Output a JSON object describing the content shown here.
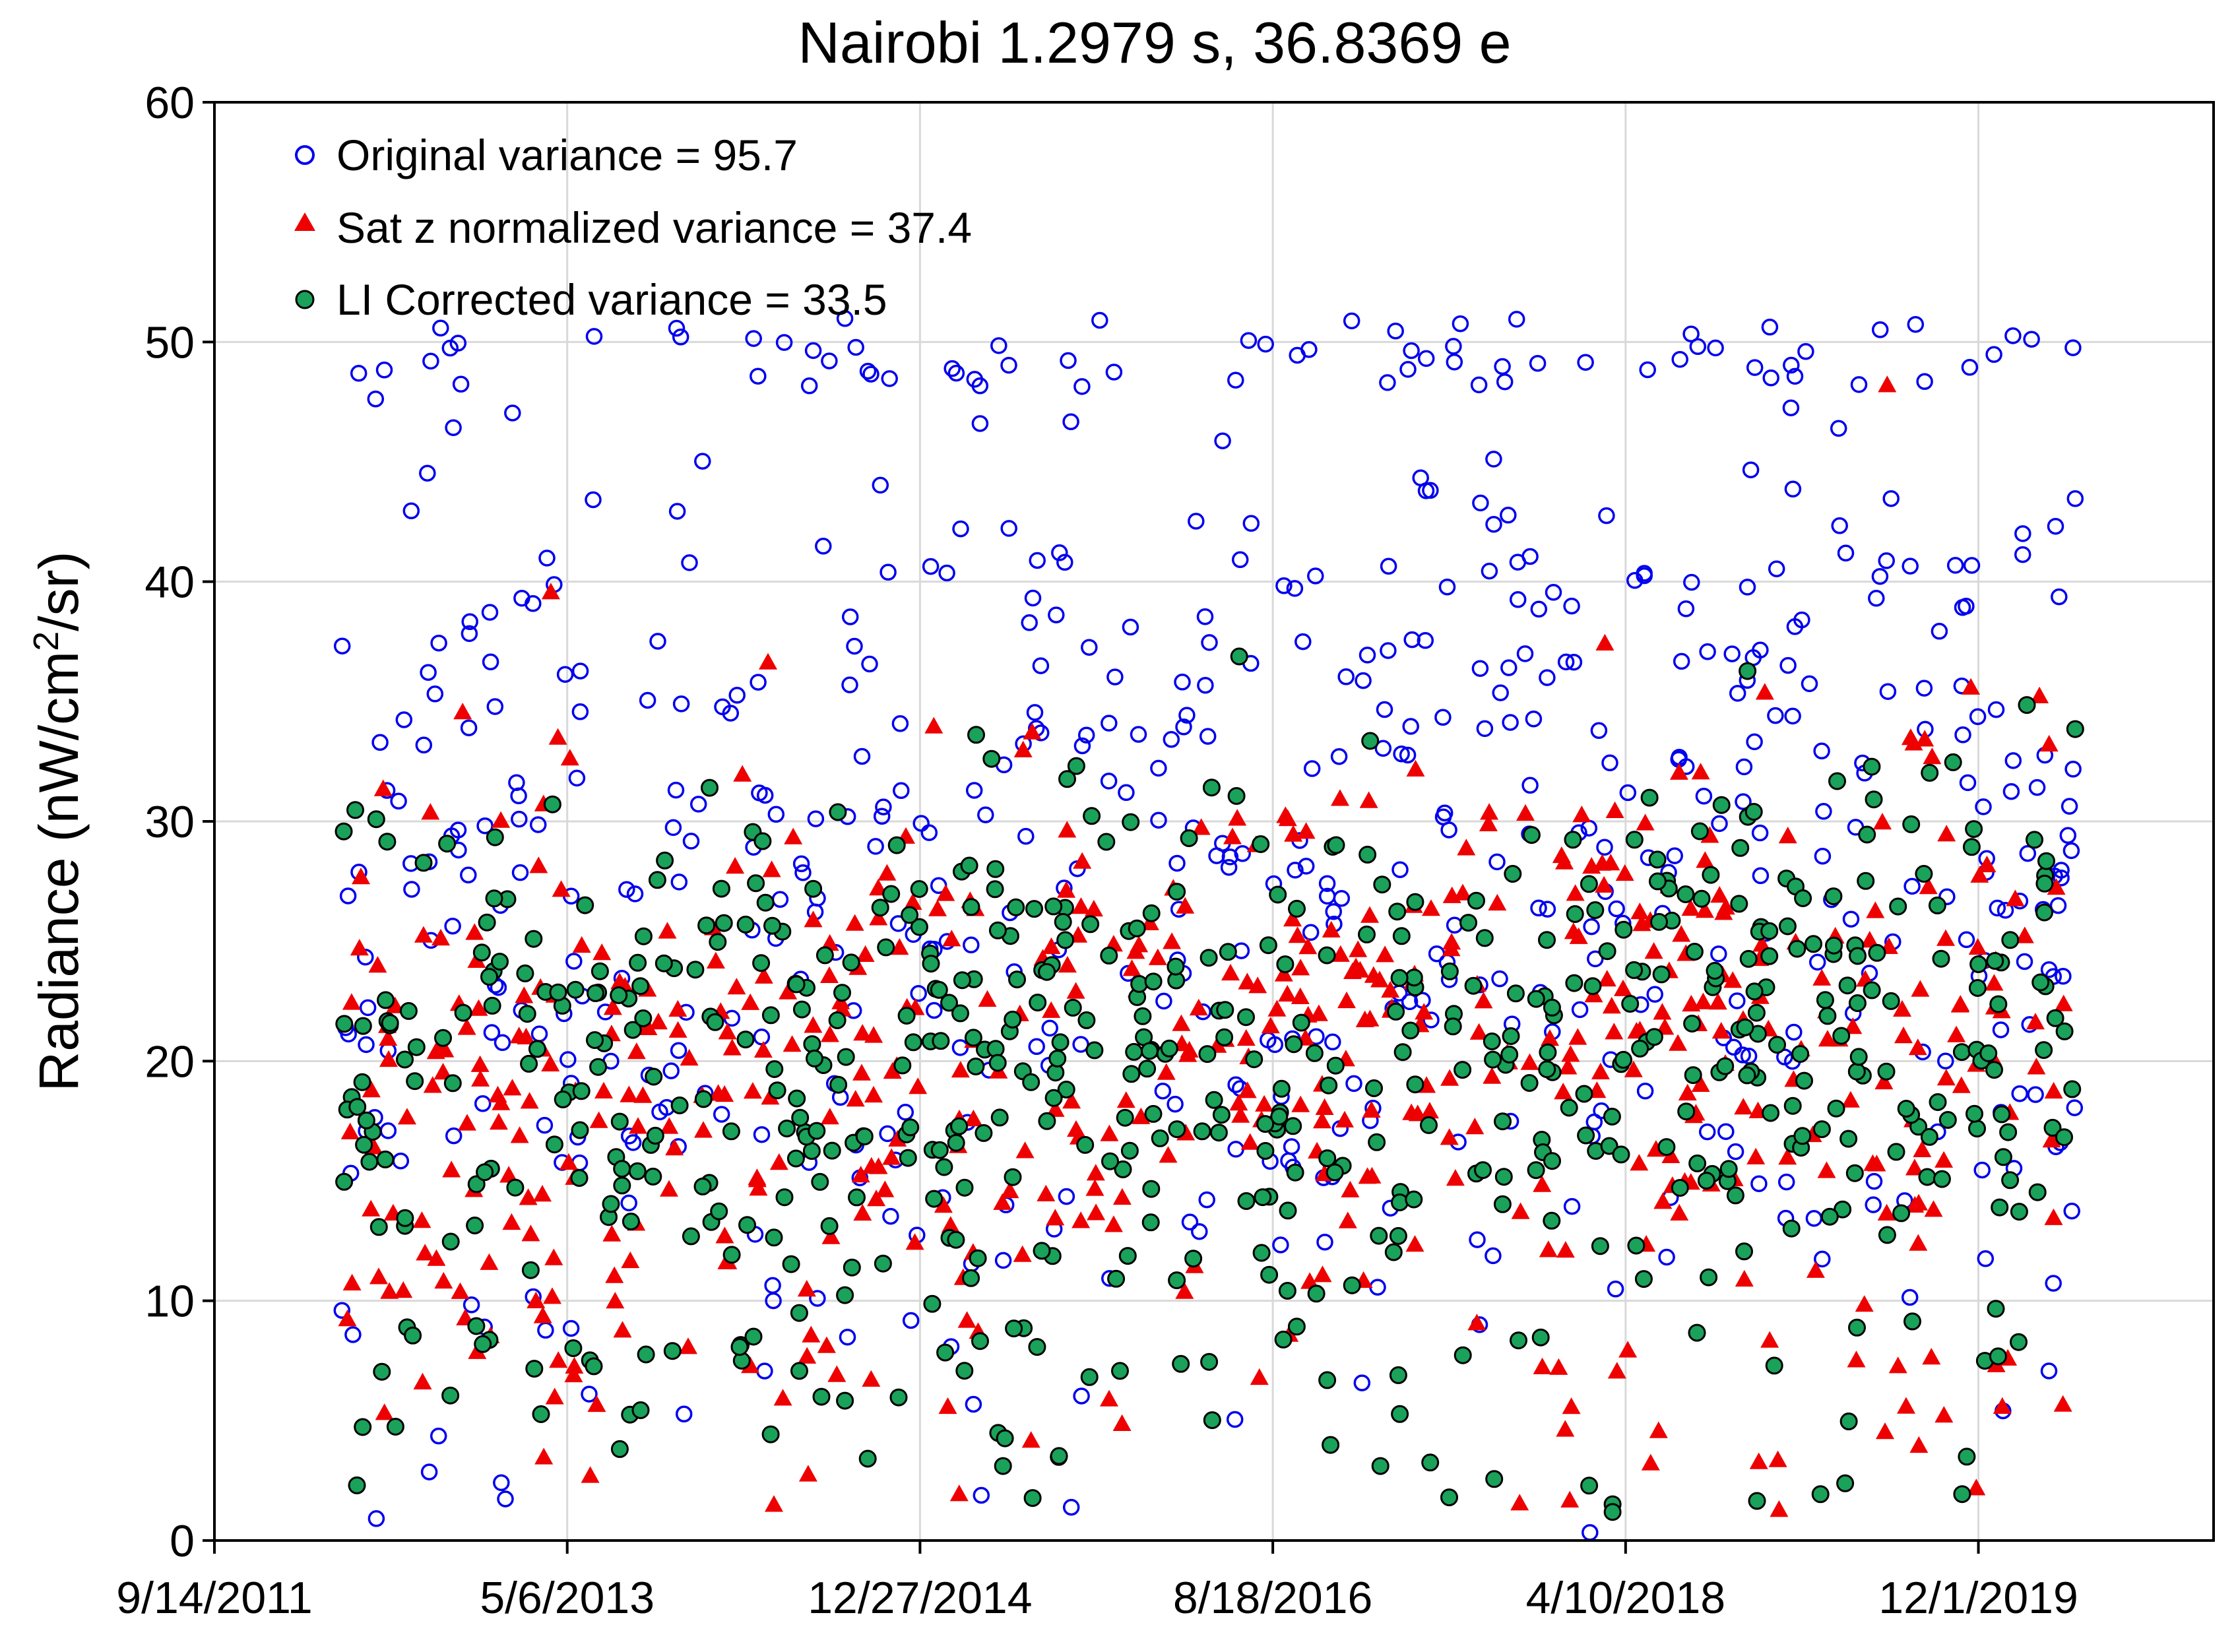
{
  "chart_data": {
    "type": "scatter",
    "title": "Nairobi 1.2979 s, 36.8369 e",
    "ylabel_main": "Radiance (nW/cm",
    "ylabel_sup": "2",
    "ylabel_tail": "/sr)",
    "xlabel": "",
    "x_ticks": [
      "9/14/2011",
      "5/6/2013",
      "12/27/2014",
      "8/18/2016",
      "4/10/2018",
      "12/1/2019"
    ],
    "y_ticks": [
      "0",
      "10",
      "20",
      "30",
      "40",
      "50",
      "60"
    ],
    "xlim_days": [
      0,
      3400
    ],
    "ylim": [
      0,
      60
    ],
    "grid": true,
    "legend_position": "top-left",
    "series": [
      {
        "name": "Original variance = 95.7",
        "marker": "open-circle",
        "color": "#0000ee",
        "seed": 11,
        "mean": 24,
        "spread": 9.5,
        "n": 620,
        "trend": 0.0012
      },
      {
        "name": "Sat z normalized variance = 37.4",
        "marker": "triangle",
        "color": "#ee0000",
        "seed": 29,
        "mean": 18.5,
        "spread": 6.0,
        "n": 560,
        "trend": 0.0016
      },
      {
        "name": "LI Corrected variance = 33.5",
        "marker": "filled-circle",
        "color": "#1aa15a",
        "seed": 47,
        "mean": 18,
        "spread": 5.6,
        "n": 640,
        "trend": 0.0016
      }
    ],
    "date_range_days": [
      216,
      3165
    ]
  }
}
